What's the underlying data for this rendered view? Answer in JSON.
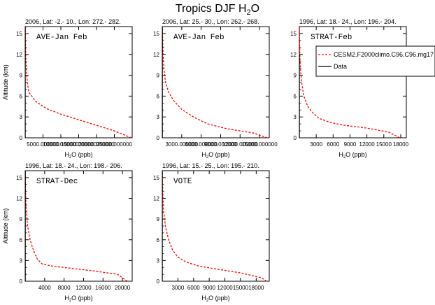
{
  "figure": {
    "title_main": "Tropics DJF H",
    "title_sub": "2",
    "title_tail": "O"
  },
  "legend": {
    "placement": "top-right",
    "model_label": "CESM2.F2000climo.C96.C96.mg17",
    "obs_label": "Data",
    "colors": {
      "model": "#ff0000",
      "obs": "#000000"
    }
  },
  "chart_data": [
    {
      "type": "line",
      "header": "2006, Lat: -2.- 10., Lon: 272.- 282.",
      "campaign": "AVE-Jan Feb",
      "xlabel_main": "H",
      "xlabel_sub": "2",
      "xlabel_tail": "O (ppb)",
      "ylabel": "Altitude (km)",
      "xlim": [
        0,
        30000
      ],
      "ylim": [
        0,
        16
      ],
      "xticks": [
        5000,
        10000,
        15000,
        20000,
        25000
      ],
      "xticklabels": [
        "5000.000000",
        "10000.000000",
        "15000.000000",
        "20000.000000",
        "25000.000000"
      ],
      "yticks": [
        0,
        3,
        6,
        9,
        12,
        15
      ],
      "yticklabels": [
        "0",
        "3",
        "6",
        "9",
        "12",
        "15"
      ],
      "series": [
        {
          "name": "CESM2.F2000climo.C96.C96.mg17",
          "points": [
            [
              29800,
              0
            ],
            [
              25000,
              1
            ],
            [
              20000,
              1.8
            ],
            [
              15000,
              2.6
            ],
            [
              10000,
              3.4
            ],
            [
              6000,
              4.2
            ],
            [
              3000,
              5.2
            ],
            [
              1000,
              6.6
            ],
            [
              600,
              8
            ],
            [
              300,
              10
            ],
            [
              150,
              12
            ],
            [
              80,
              14
            ],
            [
              50,
              16
            ]
          ]
        },
        {
          "name": "Data",
          "points": [
            [
              40,
              0
            ],
            [
              40,
              16
            ]
          ]
        }
      ]
    },
    {
      "type": "line",
      "header": "2006, Lat: 25.- 30., Lon: 262.- 268.",
      "campaign": "AVE-Jan Feb",
      "xlabel_main": "H",
      "xlabel_sub": "2",
      "xlabel_tail": "O (ppb)",
      "ylabel": "",
      "xlim": [
        0,
        16500
      ],
      "ylim": [
        0,
        16
      ],
      "xticks": [
        3000,
        6000,
        9000,
        12000,
        15000
      ],
      "xticklabels": [
        "3000.000000",
        "6000.000000",
        "9000.000000",
        "12000.000000",
        "15000.000000"
      ],
      "yticks": [
        0,
        3,
        6,
        9,
        12,
        15
      ],
      "yticklabels": [
        "0",
        "3",
        "6",
        "9",
        "12",
        "15"
      ],
      "series": [
        {
          "name": "CESM2.F2000climo.C96.C96.mg17",
          "points": [
            [
              16200,
              0
            ],
            [
              14000,
              0.7
            ],
            [
              10000,
              1.3
            ],
            [
              7000,
              2
            ],
            [
              4800,
              3
            ],
            [
              3000,
              4.1
            ],
            [
              1800,
              5.3
            ],
            [
              1000,
              6.5
            ],
            [
              500,
              8
            ],
            [
              250,
              10
            ],
            [
              130,
              12
            ],
            [
              60,
              14
            ],
            [
              30,
              16
            ]
          ]
        },
        {
          "name": "Data",
          "points": [
            [
              30,
              0
            ],
            [
              30,
              16
            ]
          ]
        }
      ]
    },
    {
      "type": "line",
      "header": "1996, Lat: 18.- 24., Lon: 196.- 204.",
      "campaign": "STRAT-Feb",
      "xlabel_main": "H",
      "xlabel_sub": "2",
      "xlabel_tail": "O (ppb)",
      "ylabel": "",
      "xlim": [
        0,
        19000
      ],
      "ylim": [
        0,
        16
      ],
      "xticks": [
        3000,
        6000,
        9000,
        12000,
        15000,
        18000
      ],
      "xticklabels": [
        "3000",
        "6000",
        "9000",
        "12000",
        "15000",
        "18000"
      ],
      "yticks": [
        0,
        3,
        6,
        9,
        12,
        15
      ],
      "yticklabels": [
        "0",
        "3",
        "6",
        "9",
        "12",
        "15"
      ],
      "series": [
        {
          "name": "CESM2.F2000climo.C96.C96.mg17",
          "points": [
            [
              17800,
              0
            ],
            [
              16000,
              0.8
            ],
            [
              12000,
              1.4
            ],
            [
              8000,
              1.8
            ],
            [
              5500,
              2.2
            ],
            [
              3500,
              2.8
            ],
            [
              2500,
              3.5
            ],
            [
              1500,
              4.5
            ],
            [
              800,
              6
            ],
            [
              400,
              8
            ],
            [
              200,
              10
            ],
            [
              100,
              12
            ],
            [
              50,
              14
            ],
            [
              30,
              16
            ]
          ]
        },
        {
          "name": "Data",
          "points": [
            [
              30,
              0
            ],
            [
              30,
              12
            ]
          ]
        }
      ]
    },
    {
      "type": "line",
      "header": "1996, Lat: 18.- 24., Lon: 198.- 206.",
      "campaign": "STRAT-Dec",
      "xlabel_main": "H",
      "xlabel_sub": "2",
      "xlabel_tail": "O (ppb)",
      "ylabel": "Altitude (km)",
      "xlim": [
        0,
        22000
      ],
      "ylim": [
        0,
        16
      ],
      "xticks": [
        4000,
        8000,
        12000,
        16000,
        20000
      ],
      "xticklabels": [
        "4000",
        "8000",
        "12000",
        "16000",
        "20000"
      ],
      "yticks": [
        0,
        3,
        6,
        9,
        12,
        15
      ],
      "yticklabels": [
        "0",
        "3",
        "6",
        "9",
        "12",
        "15"
      ],
      "series": [
        {
          "name": "CESM2.F2000climo.C96.C96.mg17",
          "points": [
            [
              21000,
              0
            ],
            [
              19000,
              1
            ],
            [
              14000,
              1.5
            ],
            [
              9000,
              1.9
            ],
            [
              5500,
              2.2
            ],
            [
              3500,
              2.5
            ],
            [
              2500,
              3.2
            ],
            [
              1700,
              4.5
            ],
            [
              1000,
              6
            ],
            [
              500,
              8
            ],
            [
              250,
              10
            ],
            [
              120,
              12
            ],
            [
              60,
              14
            ],
            [
              30,
              16
            ]
          ]
        },
        {
          "name": "Data",
          "points": [
            [
              40,
              0
            ],
            [
              40,
              16
            ]
          ]
        }
      ]
    },
    {
      "type": "line",
      "header": "1996, Lat: 15.- 25., Lon: 195.- 210.",
      "campaign": "VOTE",
      "xlabel_main": "H",
      "xlabel_sub": "2",
      "xlabel_tail": "O (ppb)",
      "ylabel": "",
      "xlim": [
        0,
        20500
      ],
      "ylim": [
        0,
        16
      ],
      "xticks": [
        3000,
        6000,
        9000,
        12000,
        15000,
        18000
      ],
      "xticklabels": [
        "3000",
        "6000",
        "9000",
        "12000",
        "15000",
        "18000"
      ],
      "yticks": [
        0,
        3,
        6,
        9,
        12,
        15
      ],
      "yticklabels": [
        "0",
        "3",
        "6",
        "9",
        "12",
        "15"
      ],
      "series": [
        {
          "name": "CESM2.F2000climo.C96.C96.mg17",
          "points": [
            [
              20000,
              0
            ],
            [
              19000,
              0.5
            ],
            [
              15000,
              1.2
            ],
            [
              10000,
              1.8
            ],
            [
              7000,
              2.2
            ],
            [
              4500,
              2.8
            ],
            [
              3000,
              3.5
            ],
            [
              2000,
              4.5
            ],
            [
              1200,
              6
            ],
            [
              600,
              8
            ],
            [
              300,
              10
            ],
            [
              150,
              12
            ],
            [
              70,
              14
            ],
            [
              30,
              16
            ]
          ]
        },
        {
          "name": "Data",
          "points": [
            [
              30,
              0
            ],
            [
              30,
              16
            ]
          ]
        }
      ]
    }
  ]
}
